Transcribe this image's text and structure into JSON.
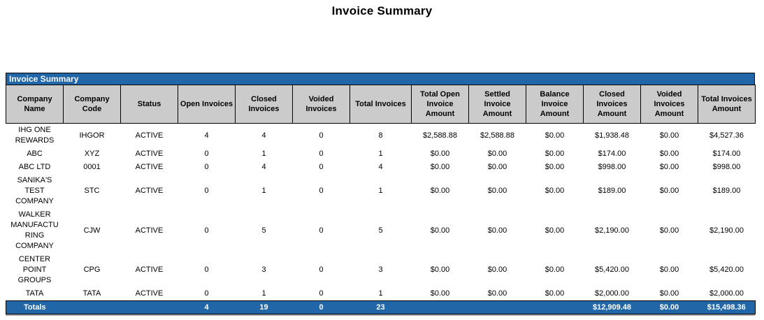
{
  "title": "Invoice Summary",
  "panel_header": "Invoice Summary",
  "colors": {
    "accent_blue": "#2167A8",
    "header_gray": "#CBCBCB",
    "border_black": "#000000",
    "totals_text": "#FFFFFF"
  },
  "table": {
    "columns": [
      "Company Name",
      "Company Code",
      "Status",
      "Open Invoices",
      "Closed Invoices",
      "Voided Invoices",
      "Total Invoices",
      "Total Open Invoice Amount",
      "Settled Invoice Amount",
      "Balance Invoice Amount",
      "Closed Invoices Amount",
      "Voided Invoices Amount",
      "Total Invoices Amount"
    ],
    "rows": [
      [
        "IHG ONE REWARDS",
        "IHGOR",
        "ACTIVE",
        "4",
        "4",
        "0",
        "8",
        "$2,588.88",
        "$2,588.88",
        "$0.00",
        "$1,938.48",
        "$0.00",
        "$4,527.36"
      ],
      [
        "ABC",
        "XYZ",
        "ACTIVE",
        "0",
        "1",
        "0",
        "1",
        "$0.00",
        "$0.00",
        "$0.00",
        "$174.00",
        "$0.00",
        "$174.00"
      ],
      [
        "ABC LTD",
        "0001",
        "ACTIVE",
        "0",
        "4",
        "0",
        "4",
        "$0.00",
        "$0.00",
        "$0.00",
        "$998.00",
        "$0.00",
        "$998.00"
      ],
      [
        "SANIKA'S TEST COMPANY",
        "STC",
        "ACTIVE",
        "0",
        "1",
        "0",
        "1",
        "$0.00",
        "$0.00",
        "$0.00",
        "$189.00",
        "$0.00",
        "$189.00"
      ],
      [
        "WALKER MANUFACTURING COMPANY",
        "CJW",
        "ACTIVE",
        "0",
        "5",
        "0",
        "5",
        "$0.00",
        "$0.00",
        "$0.00",
        "$2,190.00",
        "$0.00",
        "$2,190.00"
      ],
      [
        "CENTER POINT GROUPS",
        "CPG",
        "ACTIVE",
        "0",
        "3",
        "0",
        "3",
        "$0.00",
        "$0.00",
        "$0.00",
        "$5,420.00",
        "$0.00",
        "$5,420.00"
      ],
      [
        "TATA",
        "TATA",
        "ACTIVE",
        "0",
        "1",
        "0",
        "1",
        "$0.00",
        "$0.00",
        "$0.00",
        "$2,000.00",
        "$0.00",
        "$2,000.00"
      ]
    ],
    "totals": [
      "Totals",
      "",
      "",
      "4",
      "19",
      "0",
      "23",
      "",
      "",
      "",
      "$12,909.48",
      "$0.00",
      "$15,498.36"
    ]
  }
}
